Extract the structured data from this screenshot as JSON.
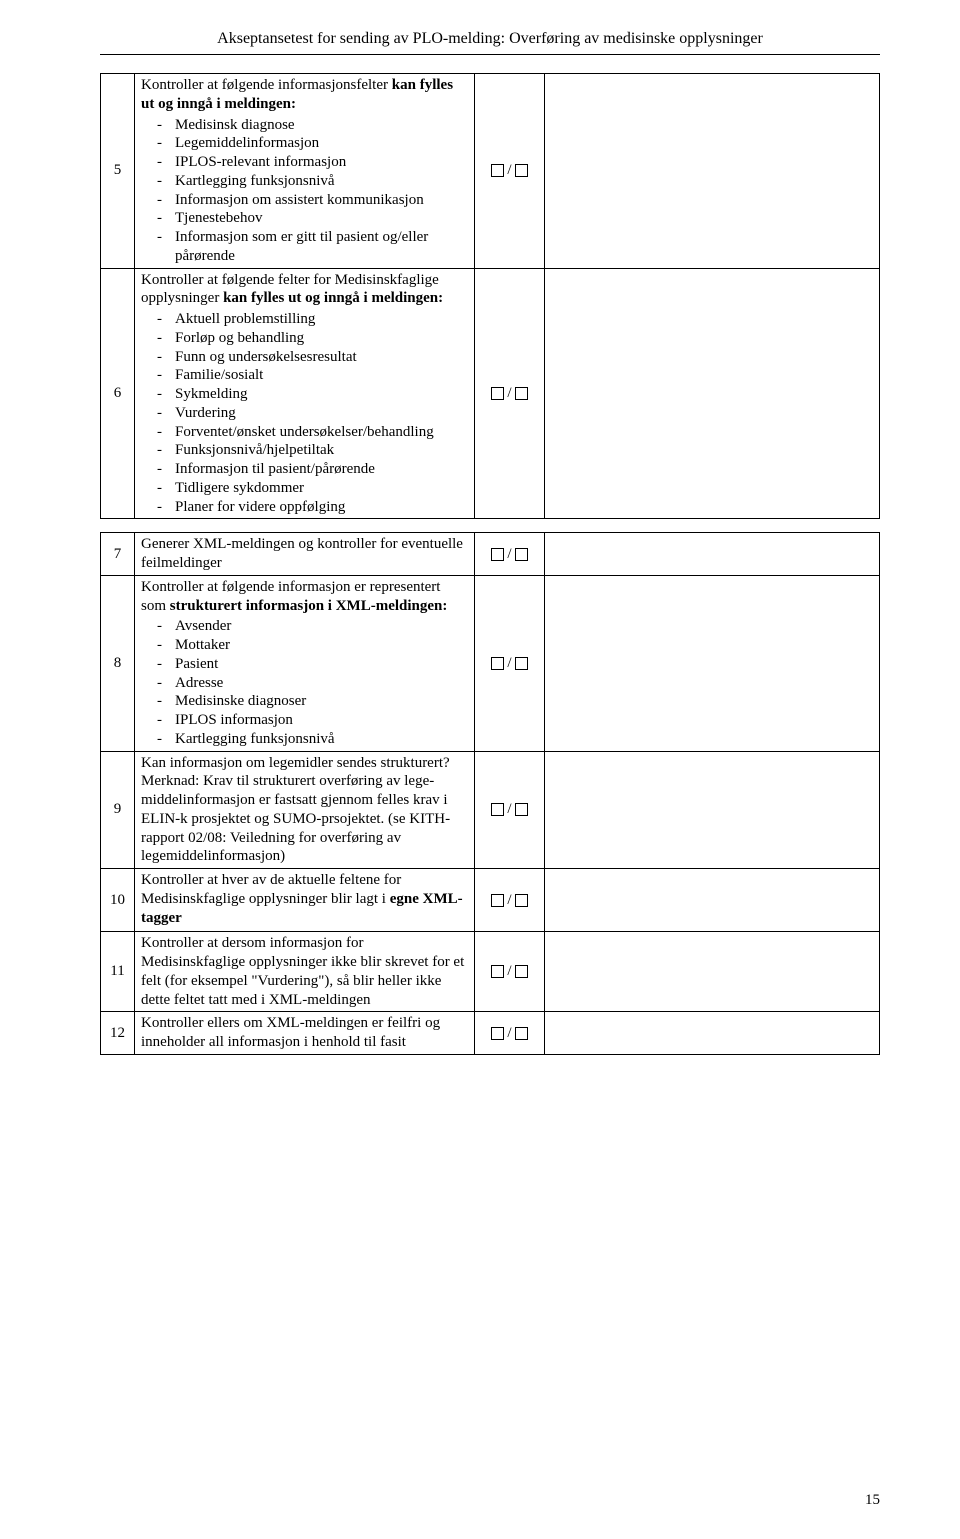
{
  "header": {
    "title": "Akseptansetest for sending av PLO-melding: Overføring av medisinske opplysninger"
  },
  "pageNumber": "15",
  "rows": [
    {
      "num": "5",
      "intro_parts": [
        {
          "text": "Kontroller at følgende informasjonsfelter ",
          "bold": false
        },
        {
          "text": "kan fylles ut og inngå i meldingen:",
          "bold": true
        }
      ],
      "items": [
        "Medisinsk diagnose",
        "Legemiddelinformasjon",
        "IPLOS-relevant informasjon",
        "Kartlegging funksjonsnivå",
        "Informasjon om assistert kommunikasjon",
        "Tjenestebehov",
        "Informasjon som er gitt til pasient og/eller pårørende"
      ]
    },
    {
      "num": "6",
      "intro_parts": [
        {
          "text": "Kontroller at følgende felter for Medisinskfaglige opplysninger ",
          "bold": false
        },
        {
          "text": "kan fylles ut og inngå i meldingen:",
          "bold": true
        }
      ],
      "items": [
        "Aktuell problemstilling",
        "Forløp og behandling",
        "Funn og undersøkelsesresultat",
        "Familie/sosialt",
        "Sykmelding",
        "Vurdering",
        "Forventet/ønsket undersøkelser/behandling",
        "Funksjonsnivå/hjelpetiltak",
        "Informasjon til pasient/pårørende",
        "Tidligere sykdommer",
        "Planer for videre oppfølging"
      ]
    },
    {
      "num": "7",
      "plain": "Generer XML-meldingen og kontroller for eventuelle feilmeldinger"
    },
    {
      "num": "8",
      "intro_parts": [
        {
          "text": "Kontroller at følgende informasjon er representert som ",
          "bold": false
        },
        {
          "text": "strukturert informasjon i XML-meldingen:",
          "bold": true
        }
      ],
      "items": [
        "Avsender",
        "Mottaker",
        "Pasient",
        "Adresse",
        "Medisinske diagnoser",
        "IPLOS informasjon",
        "Kartlegging funksjonsnivå"
      ]
    },
    {
      "num": "9",
      "plain": "Kan informasjon om legemidler sendes strukturert?\nMerknad: Krav til strukturert overføring av lege-middelinformasjon er fastsatt gjennom felles krav i  ELIN-k prosjektet og SUMO-prsojektet. (se KITH-rapport 02/08: Veiledning for overføring av legemiddelinformasjon)"
    },
    {
      "num": "10",
      "intro_parts": [
        {
          "text": "Kontroller at hver av de aktuelle feltene for Medisinskfaglige opplysninger blir lagt i ",
          "bold": false
        },
        {
          "text": "egne XML-tagger",
          "bold": true
        }
      ]
    },
    {
      "num": "11",
      "plain": "Kontroller at dersom informasjon for Medisinskfaglige opplysninger ikke blir skrevet for et felt (for eksempel \"Vurdering\"), så blir heller ikke dette feltet tatt med i XML-meldingen"
    },
    {
      "num": "12",
      "plain": "Kontroller ellers om XML-meldingen er feilfri og inneholder all informasjon i henhold til fasit"
    }
  ]
}
